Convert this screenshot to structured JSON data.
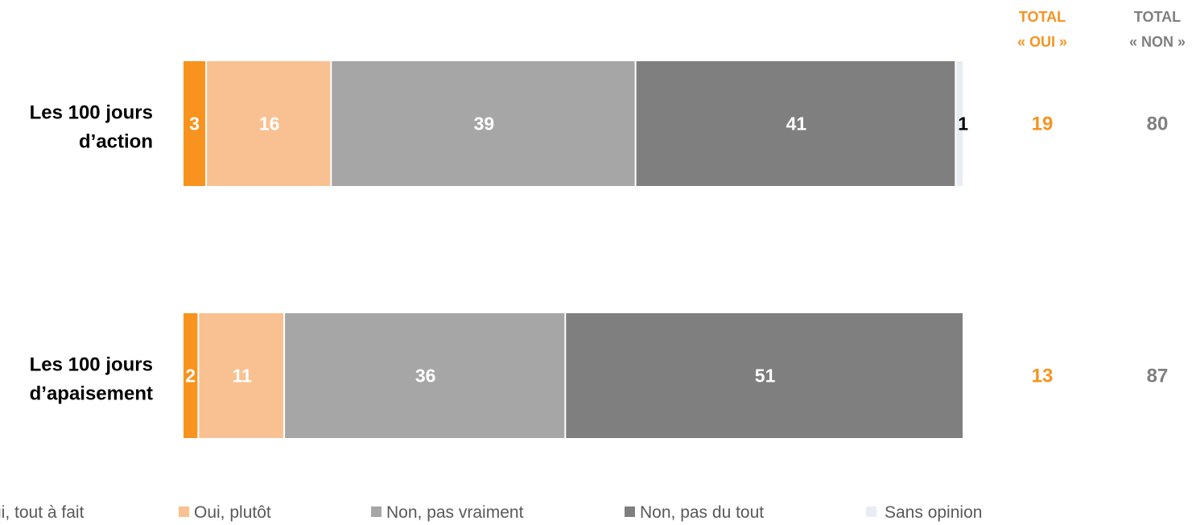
{
  "chart_data": {
    "type": "bar",
    "orientation": "horizontal",
    "stacked": true,
    "categories": [
      "Les 100 jours d’action",
      "Les 100 jours d’apaisement"
    ],
    "category_lines": [
      [
        "Les 100 jours",
        "d’action"
      ],
      [
        "Les 100 jours",
        "d’apaisement"
      ]
    ],
    "series": [
      {
        "name": "Oui, tout à fait",
        "legend_label": "ui, tout à fait",
        "color": "#F7931E",
        "label_color": "#FFFFFF",
        "values": [
          3,
          2
        ]
      },
      {
        "name": "Oui, plutôt",
        "legend_label": "Oui, plutôt",
        "color": "#F9C191",
        "label_color": "#FFFFFF",
        "values": [
          16,
          11
        ]
      },
      {
        "name": "Non, pas vraiment",
        "legend_label": "Non, pas vraiment",
        "color": "#A6A6A6",
        "label_color": "#FFFFFF",
        "values": [
          39,
          36
        ]
      },
      {
        "name": "Non, pas du tout",
        "legend_label": "Non, pas du tout",
        "color": "#7F7F7F",
        "label_color": "#FFFFFF",
        "values": [
          41,
          51
        ]
      },
      {
        "name": "Sans opinion",
        "legend_label": "Sans opinion",
        "color": "#E8ECF4",
        "label_color": "#000000",
        "values": [
          1,
          0
        ]
      }
    ],
    "totals": [
      {
        "header_lines": [
          "TOTAL",
          "« OUI »"
        ],
        "color": "#F7931E",
        "values": [
          19,
          13
        ]
      },
      {
        "header_lines": [
          "TOTAL",
          "« NON »"
        ],
        "color": "#7F7F7F",
        "values": [
          80,
          87
        ]
      }
    ],
    "xlim": [
      0,
      100
    ],
    "grid": false,
    "legend_position": "bottom",
    "title": "",
    "xlabel": "",
    "ylabel": ""
  }
}
